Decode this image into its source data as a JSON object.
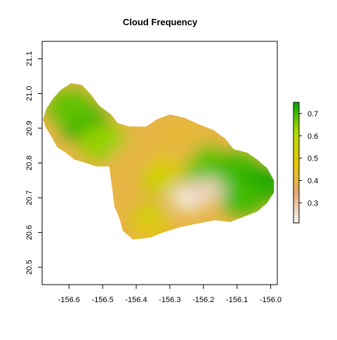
{
  "chart_data": {
    "type": "heatmap",
    "title": "Cloud Frequency",
    "xlabel": "",
    "ylabel": "",
    "xlim": [
      -156.68,
      -155.98
    ],
    "ylim": [
      20.45,
      21.15
    ],
    "x_ticks": [
      -156.6,
      -156.5,
      -156.4,
      -156.3,
      -156.2,
      -156.1,
      -156.0
    ],
    "x_tick_labels": [
      "-156.6",
      "-156.5",
      "-156.4",
      "-156.3",
      "-156.2",
      "-156.1",
      "-156.0"
    ],
    "y_ticks": [
      20.5,
      20.6,
      20.7,
      20.8,
      20.9,
      21.0,
      21.1
    ],
    "y_tick_labels": [
      "20.5",
      "20.6",
      "20.7",
      "20.8",
      "20.9",
      "21.0",
      "21.1"
    ],
    "legend": {
      "position": "right",
      "min": 0.21,
      "max": 0.75,
      "ticks": [
        0.3,
        0.4,
        0.5,
        0.6,
        0.7
      ],
      "tick_labels": [
        "0.3",
        "0.4",
        "0.5",
        "0.6",
        "0.7"
      ],
      "colors": [
        "#f2f2f2",
        "#e6a874",
        "#e6c800",
        "#b5dc00",
        "#00a600"
      ]
    },
    "grid": false,
    "values_summary": {
      "west_maui_peak": 0.74,
      "haleakala_east_peak": 0.75,
      "central_isthmus": 0.4,
      "southwest_summit_low": 0.22
    },
    "regions": [
      {
        "lon": -156.552,
        "lat": 20.912,
        "value": 0.74
      },
      {
        "lon": -156.596,
        "lat": 20.96,
        "value": 0.68
      },
      {
        "lon": -156.5,
        "lat": 20.86,
        "value": 0.64
      },
      {
        "lon": -156.21,
        "lat": 20.8,
        "value": 0.68
      },
      {
        "lon": -156.1,
        "lat": 20.78,
        "value": 0.7
      },
      {
        "lon": -156.03,
        "lat": 20.735,
        "value": 0.75
      },
      {
        "lon": -156.08,
        "lat": 20.7,
        "value": 0.7
      },
      {
        "lon": -156.33,
        "lat": 20.75,
        "value": 0.56
      },
      {
        "lon": -156.36,
        "lat": 20.64,
        "value": 0.56
      },
      {
        "lon": -156.27,
        "lat": 20.86,
        "value": 0.46
      },
      {
        "lon": -156.3,
        "lat": 20.8,
        "value": 0.5
      },
      {
        "lon": -156.24,
        "lat": 20.7,
        "value": 0.22
      },
      {
        "lon": -156.19,
        "lat": 20.72,
        "value": 0.27
      },
      {
        "lon": -156.42,
        "lat": 20.82,
        "value": 0.4
      },
      {
        "lon": -156.27,
        "lat": 20.84,
        "value": 0.4
      },
      {
        "lon": -156.35,
        "lat": 20.6,
        "value": 0.45
      }
    ]
  }
}
